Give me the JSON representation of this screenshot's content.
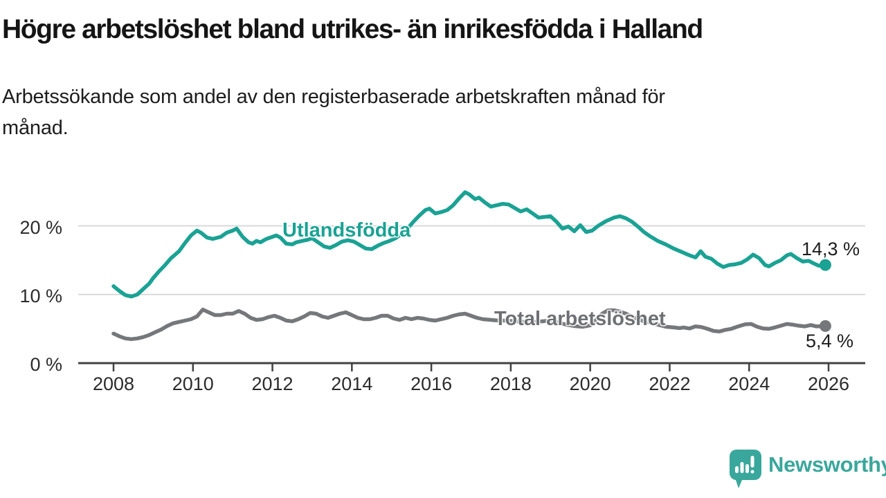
{
  "header": {
    "title": "Högre arbetslöshet bland utrikes- än inrikesfödda i Halland",
    "subtitle_line1": "Arbetssökande som andel av den registerbaserade arbetskraften månad för",
    "subtitle_line2": "månad."
  },
  "branding": {
    "logo_text": "Newsworthy"
  },
  "colors": {
    "accent_teal": "#1aa294",
    "logo_teal": "#3aa79c",
    "series_gray": "#76777b",
    "grid": "#d9d9d9",
    "axis": "#414141",
    "tick_text": "#2b2b2b",
    "value_text": "#1d1d1d"
  },
  "chart_data": {
    "type": "line",
    "title": "Högre arbetslöshet bland utrikes- än inrikesfödda i Halland",
    "subtitle": "Arbetssökande som andel av den registerbaserade arbetskraften månad för månad.",
    "xlabel": "",
    "ylabel": "",
    "grid": "horizontal",
    "x_axis": {
      "range": [
        2007.1,
        2026.9
      ],
      "ticks": [
        {
          "year": 2008,
          "label": "2008"
        },
        {
          "year": 2010,
          "label": "2010"
        },
        {
          "year": 2012,
          "label": "2012"
        },
        {
          "year": 2014,
          "label": "2014"
        },
        {
          "year": 2016,
          "label": "2016"
        },
        {
          "year": 2018,
          "label": "2018"
        },
        {
          "year": 2020,
          "label": "2020"
        },
        {
          "year": 2022,
          "label": "2022"
        },
        {
          "year": 2024,
          "label": "2024"
        },
        {
          "year": 2026,
          "label": "2026"
        }
      ]
    },
    "y_axis": {
      "range": [
        0,
        26
      ],
      "ticks": [
        {
          "value": 0,
          "label": "0 %"
        },
        {
          "value": 10,
          "label": "10 %"
        },
        {
          "value": 20,
          "label": "20 %"
        }
      ]
    },
    "series": [
      {
        "name": "Total arbetslöshet",
        "color": "#76777b",
        "end_label": "5,4 %",
        "end_value": 5.4,
        "points": [
          [
            2008.0,
            4.3
          ],
          [
            2008.15,
            3.9
          ],
          [
            2008.3,
            3.6
          ],
          [
            2008.45,
            3.5
          ],
          [
            2008.6,
            3.6
          ],
          [
            2008.75,
            3.8
          ],
          [
            2008.9,
            4.1
          ],
          [
            2009.05,
            4.5
          ],
          [
            2009.2,
            4.9
          ],
          [
            2009.35,
            5.4
          ],
          [
            2009.5,
            5.8
          ],
          [
            2009.65,
            6.0
          ],
          [
            2009.8,
            6.2
          ],
          [
            2009.95,
            6.4
          ],
          [
            2010.1,
            6.8
          ],
          [
            2010.25,
            7.8
          ],
          [
            2010.4,
            7.4
          ],
          [
            2010.55,
            7.0
          ],
          [
            2010.7,
            7.0
          ],
          [
            2010.85,
            7.2
          ],
          [
            2011.0,
            7.2
          ],
          [
            2011.15,
            7.6
          ],
          [
            2011.3,
            7.2
          ],
          [
            2011.45,
            6.6
          ],
          [
            2011.6,
            6.3
          ],
          [
            2011.75,
            6.4
          ],
          [
            2011.9,
            6.7
          ],
          [
            2012.05,
            6.9
          ],
          [
            2012.2,
            6.6
          ],
          [
            2012.35,
            6.2
          ],
          [
            2012.5,
            6.1
          ],
          [
            2012.65,
            6.4
          ],
          [
            2012.8,
            6.8
          ],
          [
            2012.95,
            7.3
          ],
          [
            2013.1,
            7.2
          ],
          [
            2013.25,
            6.8
          ],
          [
            2013.4,
            6.6
          ],
          [
            2013.55,
            6.9
          ],
          [
            2013.7,
            7.2
          ],
          [
            2013.85,
            7.4
          ],
          [
            2014.0,
            7.0
          ],
          [
            2014.15,
            6.6
          ],
          [
            2014.3,
            6.4
          ],
          [
            2014.45,
            6.4
          ],
          [
            2014.6,
            6.6
          ],
          [
            2014.75,
            6.9
          ],
          [
            2014.9,
            6.9
          ],
          [
            2015.05,
            6.5
          ],
          [
            2015.2,
            6.3
          ],
          [
            2015.35,
            6.6
          ],
          [
            2015.5,
            6.4
          ],
          [
            2015.65,
            6.6
          ],
          [
            2015.8,
            6.5
          ],
          [
            2015.95,
            6.3
          ],
          [
            2016.1,
            6.2
          ],
          [
            2016.25,
            6.4
          ],
          [
            2016.4,
            6.6
          ],
          [
            2016.55,
            6.9
          ],
          [
            2016.7,
            7.1
          ],
          [
            2016.85,
            7.2
          ],
          [
            2017.0,
            6.9
          ],
          [
            2017.15,
            6.6
          ],
          [
            2017.3,
            6.4
          ],
          [
            2017.5,
            6.3
          ],
          [
            2017.7,
            6.2
          ],
          [
            2017.9,
            6.2
          ],
          [
            2018.1,
            6.1
          ],
          [
            2018.35,
            6.0
          ],
          [
            2018.6,
            6.0
          ],
          [
            2018.8,
            6.1
          ],
          [
            2019.0,
            6.2
          ],
          [
            2019.2,
            5.9
          ],
          [
            2019.4,
            5.6
          ],
          [
            2019.6,
            5.4
          ],
          [
            2019.8,
            5.3
          ],
          [
            2020.0,
            5.5
          ],
          [
            2020.15,
            6.3
          ],
          [
            2020.3,
            7.2
          ],
          [
            2020.45,
            7.7
          ],
          [
            2020.6,
            7.7
          ],
          [
            2020.75,
            7.5
          ],
          [
            2020.9,
            7.2
          ],
          [
            2021.05,
            6.8
          ],
          [
            2021.2,
            6.4
          ],
          [
            2021.35,
            6.1
          ],
          [
            2021.5,
            5.9
          ],
          [
            2021.7,
            5.6
          ],
          [
            2021.9,
            5.3
          ],
          [
            2022.1,
            5.2
          ],
          [
            2022.25,
            5.1
          ],
          [
            2022.35,
            5.2
          ],
          [
            2022.5,
            5.05
          ],
          [
            2022.65,
            5.35
          ],
          [
            2022.8,
            5.25
          ],
          [
            2022.95,
            5.0
          ],
          [
            2023.1,
            4.7
          ],
          [
            2023.25,
            4.6
          ],
          [
            2023.4,
            4.85
          ],
          [
            2023.55,
            5.0
          ],
          [
            2023.7,
            5.3
          ],
          [
            2023.9,
            5.65
          ],
          [
            2024.05,
            5.7
          ],
          [
            2024.2,
            5.3
          ],
          [
            2024.35,
            5.05
          ],
          [
            2024.5,
            5.0
          ],
          [
            2024.65,
            5.2
          ],
          [
            2024.8,
            5.45
          ],
          [
            2024.95,
            5.7
          ],
          [
            2025.1,
            5.6
          ],
          [
            2025.25,
            5.45
          ],
          [
            2025.4,
            5.35
          ],
          [
            2025.55,
            5.55
          ],
          [
            2025.7,
            5.35
          ],
          [
            2025.92,
            5.4
          ]
        ]
      },
      {
        "name": "Utlandsfödda",
        "color": "#1aa294",
        "end_label": "14,3 %",
        "end_value": 14.3,
        "points": [
          [
            2008.0,
            11.2
          ],
          [
            2008.15,
            10.5
          ],
          [
            2008.3,
            9.9
          ],
          [
            2008.45,
            9.7
          ],
          [
            2008.6,
            10.0
          ],
          [
            2008.75,
            10.8
          ],
          [
            2008.9,
            11.6
          ],
          [
            2009.0,
            12.4
          ],
          [
            2009.15,
            13.4
          ],
          [
            2009.3,
            14.3
          ],
          [
            2009.45,
            15.3
          ],
          [
            2009.55,
            15.8
          ],
          [
            2009.65,
            16.3
          ],
          [
            2009.8,
            17.5
          ],
          [
            2009.95,
            18.6
          ],
          [
            2010.1,
            19.3
          ],
          [
            2010.2,
            19.0
          ],
          [
            2010.35,
            18.3
          ],
          [
            2010.5,
            18.1
          ],
          [
            2010.7,
            18.4
          ],
          [
            2010.85,
            19.0
          ],
          [
            2011.0,
            19.3
          ],
          [
            2011.1,
            19.6
          ],
          [
            2011.25,
            18.4
          ],
          [
            2011.4,
            17.6
          ],
          [
            2011.5,
            17.4
          ],
          [
            2011.6,
            17.8
          ],
          [
            2011.7,
            17.6
          ],
          [
            2011.85,
            18.1
          ],
          [
            2012.0,
            18.4
          ],
          [
            2012.1,
            18.6
          ],
          [
            2012.2,
            18.3
          ],
          [
            2012.35,
            17.4
          ],
          [
            2012.5,
            17.3
          ],
          [
            2012.6,
            17.6
          ],
          [
            2012.75,
            17.8
          ],
          [
            2012.9,
            18.0
          ],
          [
            2013.0,
            18.2
          ],
          [
            2013.15,
            17.6
          ],
          [
            2013.3,
            17.0
          ],
          [
            2013.45,
            16.8
          ],
          [
            2013.6,
            17.2
          ],
          [
            2013.75,
            17.7
          ],
          [
            2013.9,
            17.9
          ],
          [
            2014.05,
            17.7
          ],
          [
            2014.2,
            17.2
          ],
          [
            2014.35,
            16.7
          ],
          [
            2014.5,
            16.6
          ],
          [
            2014.65,
            17.1
          ],
          [
            2014.8,
            17.5
          ],
          [
            2014.95,
            17.8
          ],
          [
            2015.1,
            18.2
          ],
          [
            2015.25,
            18.8
          ],
          [
            2015.4,
            19.6
          ],
          [
            2015.55,
            20.6
          ],
          [
            2015.7,
            21.5
          ],
          [
            2015.85,
            22.3
          ],
          [
            2015.95,
            22.5
          ],
          [
            2016.1,
            21.8
          ],
          [
            2016.25,
            22.0
          ],
          [
            2016.4,
            22.3
          ],
          [
            2016.55,
            23.0
          ],
          [
            2016.7,
            24.0
          ],
          [
            2016.85,
            24.9
          ],
          [
            2016.95,
            24.6
          ],
          [
            2017.1,
            23.9
          ],
          [
            2017.2,
            24.1
          ],
          [
            2017.35,
            23.4
          ],
          [
            2017.5,
            22.8
          ],
          [
            2017.65,
            23.0
          ],
          [
            2017.8,
            23.2
          ],
          [
            2017.95,
            23.1
          ],
          [
            2018.1,
            22.6
          ],
          [
            2018.25,
            22.1
          ],
          [
            2018.4,
            22.4
          ],
          [
            2018.55,
            21.8
          ],
          [
            2018.7,
            21.2
          ],
          [
            2018.85,
            21.3
          ],
          [
            2019.0,
            21.4
          ],
          [
            2019.15,
            20.6
          ],
          [
            2019.3,
            19.6
          ],
          [
            2019.45,
            19.9
          ],
          [
            2019.6,
            19.2
          ],
          [
            2019.75,
            20.1
          ],
          [
            2019.9,
            19.1
          ],
          [
            2020.05,
            19.3
          ],
          [
            2020.2,
            20.0
          ],
          [
            2020.4,
            20.7
          ],
          [
            2020.6,
            21.2
          ],
          [
            2020.75,
            21.4
          ],
          [
            2020.9,
            21.1
          ],
          [
            2021.05,
            20.6
          ],
          [
            2021.2,
            19.9
          ],
          [
            2021.35,
            19.1
          ],
          [
            2021.5,
            18.5
          ],
          [
            2021.7,
            17.8
          ],
          [
            2021.9,
            17.3
          ],
          [
            2022.1,
            16.7
          ],
          [
            2022.3,
            16.2
          ],
          [
            2022.5,
            15.7
          ],
          [
            2022.65,
            15.4
          ],
          [
            2022.78,
            16.3
          ],
          [
            2022.9,
            15.5
          ],
          [
            2023.05,
            15.2
          ],
          [
            2023.2,
            14.5
          ],
          [
            2023.35,
            14.0
          ],
          [
            2023.5,
            14.3
          ],
          [
            2023.65,
            14.4
          ],
          [
            2023.8,
            14.6
          ],
          [
            2023.95,
            15.1
          ],
          [
            2024.1,
            15.8
          ],
          [
            2024.25,
            15.3
          ],
          [
            2024.4,
            14.3
          ],
          [
            2024.5,
            14.1
          ],
          [
            2024.65,
            14.6
          ],
          [
            2024.8,
            15.0
          ],
          [
            2024.95,
            15.7
          ],
          [
            2025.05,
            15.9
          ],
          [
            2025.2,
            15.3
          ],
          [
            2025.35,
            14.8
          ],
          [
            2025.5,
            14.9
          ],
          [
            2025.6,
            14.6
          ],
          [
            2025.75,
            14.2
          ],
          [
            2025.92,
            14.3
          ]
        ]
      }
    ]
  }
}
